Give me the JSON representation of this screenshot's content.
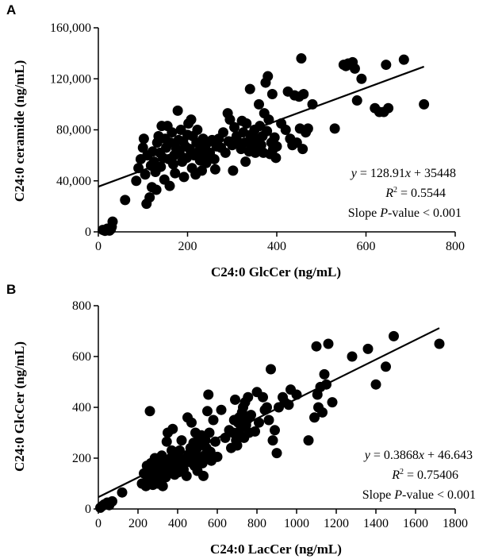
{
  "chart_data": [
    {
      "panel_label": "A",
      "type": "scatter",
      "xlabel": "C24:0 GlcCer (ng/mL)",
      "ylabel": "C24:0 ceramide (ng/mL)",
      "xlim": [
        0,
        800
      ],
      "ylim": [
        0,
        160000
      ],
      "xticks": [
        0,
        200,
        400,
        600,
        800
      ],
      "yticks": [
        0,
        40000,
        80000,
        120000,
        160000
      ],
      "xtick_labels": [
        "0",
        "200",
        "400",
        "600",
        "800"
      ],
      "ytick_labels": [
        "0",
        "40,000",
        "80,000",
        "120,000",
        "160,000"
      ],
      "grid": false,
      "trendline": {
        "slope": 128.91,
        "intercept": 35448,
        "x_range": [
          0,
          730
        ]
      },
      "annotations": {
        "equation": {
          "prefix": "y",
          "rest": " = 128.91",
          "var": "x",
          "tail": " + 35448"
        },
        "r2": {
          "lead": "R",
          "sup": "2",
          "tail": " = 0.5544"
        },
        "pvalue": {
          "lead": "Slope ",
          "p": "P",
          "tail": "-value < 0.001"
        }
      },
      "points": [
        [
          10,
          1500
        ],
        [
          15,
          800
        ],
        [
          20,
          2500
        ],
        [
          25,
          1000
        ],
        [
          30,
          4000
        ],
        [
          32,
          8000
        ],
        [
          28,
          2000
        ],
        [
          60,
          25000
        ],
        [
          85,
          40000
        ],
        [
          90,
          50000
        ],
        [
          95,
          57000
        ],
        [
          100,
          66000
        ],
        [
          102,
          73000
        ],
        [
          105,
          45000
        ],
        [
          108,
          22000
        ],
        [
          110,
          60000
        ],
        [
          115,
          27000
        ],
        [
          118,
          52000
        ],
        [
          120,
          35000
        ],
        [
          122,
          63000
        ],
        [
          125,
          55000
        ],
        [
          128,
          47000
        ],
        [
          130,
          33000
        ],
        [
          132,
          70000
        ],
        [
          135,
          75000
        ],
        [
          138,
          62000
        ],
        [
          140,
          51000
        ],
        [
          142,
          83000
        ],
        [
          145,
          58000
        ],
        [
          148,
          41000
        ],
        [
          150,
          73000
        ],
        [
          152,
          66000
        ],
        [
          155,
          83000
        ],
        [
          158,
          57000
        ],
        [
          160,
          36000
        ],
        [
          162,
          70000
        ],
        [
          165,
          78000
        ],
        [
          168,
          53000
        ],
        [
          170,
          60000
        ],
        [
          172,
          46000
        ],
        [
          175,
          65000
        ],
        [
          178,
          95000
        ],
        [
          180,
          72000
        ],
        [
          182,
          62000
        ],
        [
          185,
          80000
        ],
        [
          188,
          55000
        ],
        [
          190,
          71000
        ],
        [
          192,
          43000
        ],
        [
          195,
          67000
        ],
        [
          198,
          58000
        ],
        [
          200,
          76000
        ],
        [
          202,
          85000
        ],
        [
          205,
          65000
        ],
        [
          208,
          88000
        ],
        [
          210,
          50000
        ],
        [
          212,
          75000
        ],
        [
          215,
          60000
        ],
        [
          218,
          45000
        ],
        [
          220,
          70000
        ],
        [
          222,
          80000
        ],
        [
          225,
          63000
        ],
        [
          228,
          56000
        ],
        [
          230,
          68000
        ],
        [
          232,
          48000
        ],
        [
          235,
          73000
        ],
        [
          238,
          58000
        ],
        [
          240,
          65000
        ],
        [
          242,
          54000
        ],
        [
          245,
          70000
        ],
        [
          250,
          62000
        ],
        [
          255,
          72000
        ],
        [
          260,
          57000
        ],
        [
          262,
          49000
        ],
        [
          265,
          67000
        ],
        [
          270,
          73000
        ],
        [
          275,
          66000
        ],
        [
          280,
          78000
        ],
        [
          285,
          62000
        ],
        [
          290,
          93000
        ],
        [
          292,
          71000
        ],
        [
          295,
          88000
        ],
        [
          300,
          68000
        ],
        [
          302,
          48000
        ],
        [
          305,
          82000
        ],
        [
          310,
          75000
        ],
        [
          315,
          70000
        ],
        [
          320,
          65000
        ],
        [
          322,
          87000
        ],
        [
          325,
          78000
        ],
        [
          328,
          70000
        ],
        [
          330,
          55000
        ],
        [
          332,
          85000
        ],
        [
          335,
          70000
        ],
        [
          338,
          63000
        ],
        [
          340,
          112000
        ],
        [
          342,
          75000
        ],
        [
          345,
          68000
        ],
        [
          350,
          80000
        ],
        [
          352,
          62000
        ],
        [
          355,
          73000
        ],
        [
          358,
          65000
        ],
        [
          360,
          100000
        ],
        [
          362,
          83000
        ],
        [
          365,
          68000
        ],
        [
          368,
          75000
        ],
        [
          370,
          62000
        ],
        [
          372,
          93000
        ],
        [
          375,
          117000
        ],
        [
          378,
          79000
        ],
        [
          380,
          122000
        ],
        [
          382,
          88000
        ],
        [
          385,
          61000
        ],
        [
          388,
          70000
        ],
        [
          390,
          108000
        ],
        [
          392,
          65000
        ],
        [
          395,
          74000
        ],
        [
          398,
          58000
        ],
        [
          400,
          67000
        ],
        [
          410,
          85000
        ],
        [
          420,
          80000
        ],
        [
          425,
          110000
        ],
        [
          430,
          73000
        ],
        [
          435,
          68000
        ],
        [
          440,
          107000
        ],
        [
          445,
          70000
        ],
        [
          450,
          106000
        ],
        [
          452,
          81000
        ],
        [
          455,
          136000
        ],
        [
          458,
          65000
        ],
        [
          460,
          108000
        ],
        [
          465,
          78000
        ],
        [
          470,
          81000
        ],
        [
          480,
          100000
        ],
        [
          530,
          81000
        ],
        [
          550,
          131000
        ],
        [
          555,
          130000
        ],
        [
          560,
          132000
        ],
        [
          570,
          133000
        ],
        [
          575,
          128000
        ],
        [
          580,
          103000
        ],
        [
          590,
          120000
        ],
        [
          620,
          97000
        ],
        [
          630,
          94000
        ],
        [
          640,
          94000
        ],
        [
          645,
          131000
        ],
        [
          650,
          97000
        ],
        [
          685,
          135000
        ],
        [
          730,
          100000
        ]
      ]
    },
    {
      "panel_label": "B",
      "type": "scatter",
      "xlabel": "C24:0 LacCer (ng/mL)",
      "ylabel": "C24:0 GlcCer (ng/mL)",
      "xlim": [
        0,
        1800
      ],
      "ylim": [
        0,
        800
      ],
      "xticks": [
        0,
        200,
        400,
        600,
        800,
        1000,
        1200,
        1400,
        1600,
        1800
      ],
      "yticks": [
        0,
        200,
        400,
        600,
        800
      ],
      "xtick_labels": [
        "0",
        "200",
        "400",
        "600",
        "800",
        "1000",
        "1200",
        "1400",
        "1600",
        "1800"
      ],
      "ytick_labels": [
        "0",
        "200",
        "400",
        "600",
        "800"
      ],
      "grid": false,
      "trendline": {
        "slope": 0.3868,
        "intercept": 46.643,
        "x_range": [
          0,
          1720
        ]
      },
      "annotations": {
        "equation": {
          "prefix": "y",
          "rest": " = 0.3868",
          "var": "x",
          "tail": " + 46.643"
        },
        "r2": {
          "lead": "R",
          "sup": "2",
          "tail": " = 0.75406"
        },
        "pvalue": {
          "lead": "Slope ",
          "p": "P",
          "tail": "-value < 0.001"
        }
      },
      "points": [
        [
          10,
          5
        ],
        [
          20,
          12
        ],
        [
          30,
          18
        ],
        [
          45,
          25
        ],
        [
          55,
          15
        ],
        [
          70,
          30
        ],
        [
          120,
          65
        ],
        [
          220,
          100
        ],
        [
          230,
          140
        ],
        [
          240,
          90
        ],
        [
          245,
          170
        ],
        [
          250,
          120
        ],
        [
          255,
          155
        ],
        [
          260,
          385
        ],
        [
          262,
          110
        ],
        [
          265,
          180
        ],
        [
          270,
          130
        ],
        [
          275,
          95
        ],
        [
          280,
          165
        ],
        [
          285,
          200
        ],
        [
          290,
          145
        ],
        [
          295,
          115
        ],
        [
          300,
          100
        ],
        [
          305,
          175
        ],
        [
          310,
          130
        ],
        [
          315,
          155
        ],
        [
          320,
          210
        ],
        [
          325,
          90
        ],
        [
          330,
          185
        ],
        [
          335,
          140
        ],
        [
          340,
          125
        ],
        [
          345,
          265
        ],
        [
          350,
          300
        ],
        [
          355,
          170
        ],
        [
          360,
          150
        ],
        [
          365,
          200
        ],
        [
          370,
          230
        ],
        [
          375,
          315
        ],
        [
          380,
          180
        ],
        [
          385,
          135
        ],
        [
          390,
          210
        ],
        [
          395,
          160
        ],
        [
          400,
          190
        ],
        [
          405,
          145
        ],
        [
          410,
          230
        ],
        [
          420,
          270
        ],
        [
          425,
          175
        ],
        [
          430,
          155
        ],
        [
          440,
          195
        ],
        [
          445,
          130
        ],
        [
          450,
          360
        ],
        [
          455,
          215
        ],
        [
          460,
          185
        ],
        [
          465,
          240
        ],
        [
          470,
          340
        ],
        [
          475,
          205
        ],
        [
          480,
          260
        ],
        [
          485,
          170
        ],
        [
          490,
          300
        ],
        [
          495,
          235
        ],
        [
          500,
          150
        ],
        [
          505,
          275
        ],
        [
          510,
          200
        ],
        [
          515,
          255
        ],
        [
          520,
          290
        ],
        [
          525,
          180
        ],
        [
          530,
          130
        ],
        [
          535,
          210
        ],
        [
          540,
          270
        ],
        [
          545,
          240
        ],
        [
          550,
          385
        ],
        [
          555,
          450
        ],
        [
          560,
          300
        ],
        [
          565,
          225
        ],
        [
          570,
          190
        ],
        [
          580,
          350
        ],
        [
          590,
          265
        ],
        [
          600,
          205
        ],
        [
          620,
          390
        ],
        [
          640,
          280
        ],
        [
          660,
          310
        ],
        [
          670,
          240
        ],
        [
          680,
          300
        ],
        [
          685,
          350
        ],
        [
          690,
          430
        ],
        [
          695,
          270
        ],
        [
          700,
          250
        ],
        [
          705,
          340
        ],
        [
          710,
          360
        ],
        [
          715,
          290
        ],
        [
          720,
          320
        ],
        [
          725,
          380
        ],
        [
          730,
          400
        ],
        [
          735,
          280
        ],
        [
          740,
          420
        ],
        [
          745,
          330
        ],
        [
          750,
          350
        ],
        [
          755,
          440
        ],
        [
          760,
          300
        ],
        [
          770,
          370
        ],
        [
          790,
          305
        ],
        [
          800,
          460
        ],
        [
          810,
          340
        ],
        [
          830,
          440
        ],
        [
          840,
          390
        ],
        [
          850,
          400
        ],
        [
          860,
          350
        ],
        [
          870,
          550
        ],
        [
          880,
          270
        ],
        [
          890,
          310
        ],
        [
          900,
          220
        ],
        [
          910,
          400
        ],
        [
          930,
          440
        ],
        [
          940,
          420
        ],
        [
          960,
          410
        ],
        [
          970,
          470
        ],
        [
          1000,
          450
        ],
        [
          1060,
          270
        ],
        [
          1090,
          360
        ],
        [
          1100,
          640
        ],
        [
          1105,
          450
        ],
        [
          1110,
          400
        ],
        [
          1120,
          480
        ],
        [
          1130,
          380
        ],
        [
          1140,
          530
        ],
        [
          1150,
          490
        ],
        [
          1160,
          650
        ],
        [
          1180,
          420
        ],
        [
          1280,
          600
        ],
        [
          1360,
          630
        ],
        [
          1400,
          490
        ],
        [
          1450,
          560
        ],
        [
          1490,
          680
        ],
        [
          1720,
          650
        ]
      ]
    }
  ]
}
